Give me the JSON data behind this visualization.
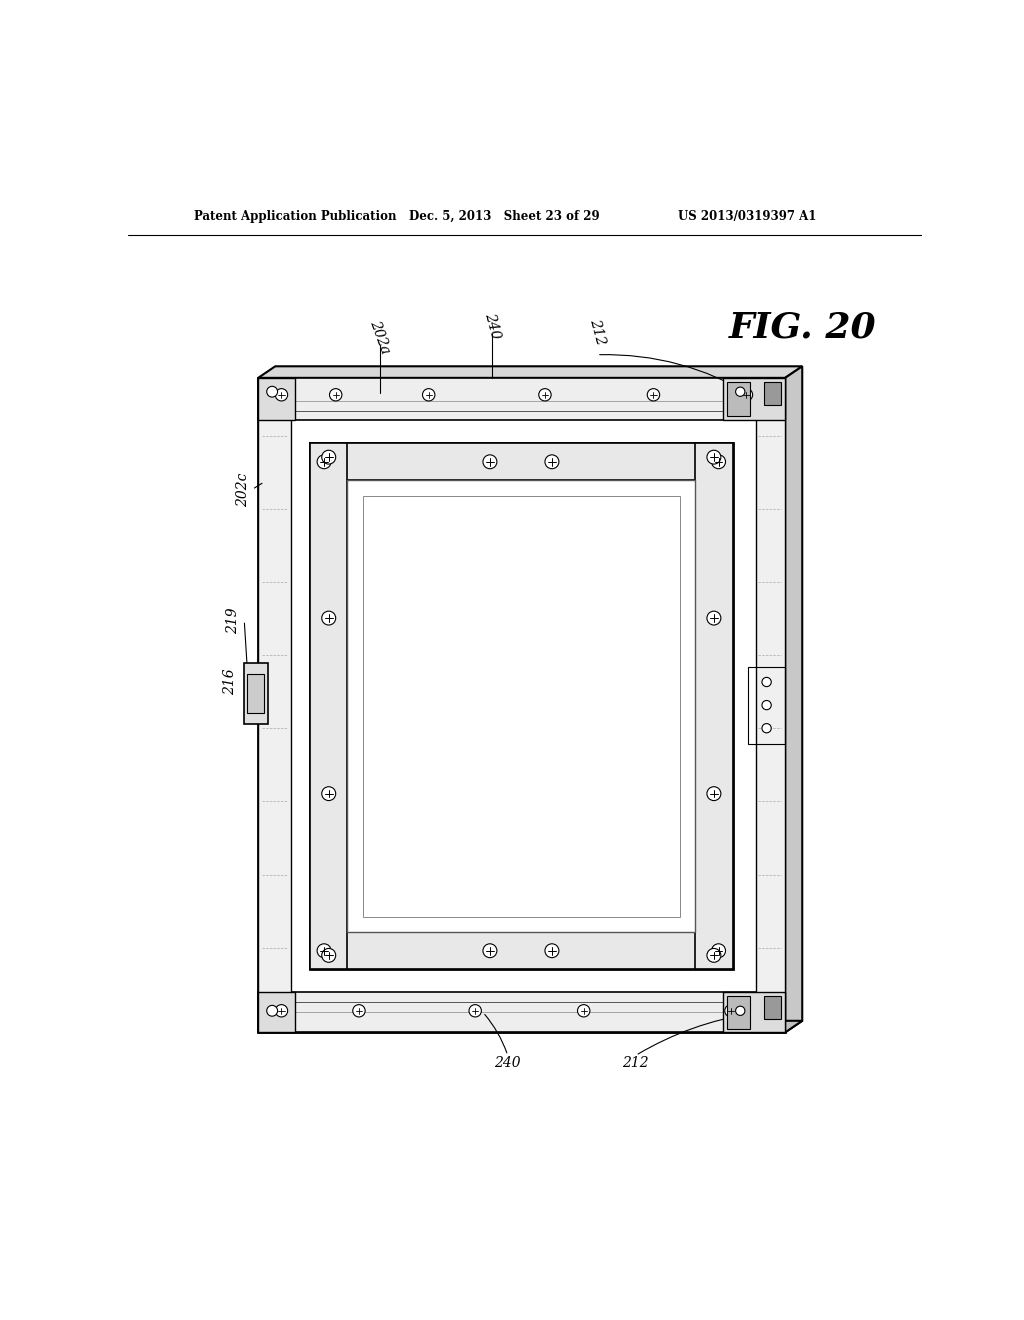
{
  "header_left": "Patent Application Publication",
  "header_mid": "Dec. 5, 2013   Sheet 23 of 29",
  "header_right": "US 2013/0319397 A1",
  "fig_label": "FIG. 20",
  "bg_color": "#ffffff",
  "lc": "#000000",
  "dark_gray": "#444444",
  "med_gray": "#888888",
  "light_gray": "#bbbbbb",
  "very_light": "#e8e8e8",
  "near_white": "#f5f5f5"
}
